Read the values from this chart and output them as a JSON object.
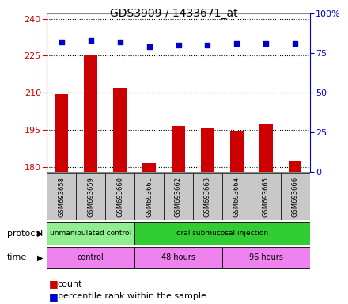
{
  "title": "GDS3909 / 1433671_at",
  "samples": [
    "GSM693658",
    "GSM693659",
    "GSM693660",
    "GSM693661",
    "GSM693662",
    "GSM693663",
    "GSM693664",
    "GSM693665",
    "GSM693666"
  ],
  "bar_values": [
    209.5,
    225.0,
    212.0,
    181.5,
    196.5,
    195.5,
    194.5,
    197.5,
    182.5
  ],
  "percentile_values": [
    82,
    83,
    82,
    79,
    80,
    80,
    81,
    81,
    81
  ],
  "ylim_left": [
    178,
    242
  ],
  "ylim_right": [
    0,
    100
  ],
  "yticks_left": [
    180,
    195,
    210,
    225,
    240
  ],
  "yticks_right": [
    0,
    25,
    50,
    75,
    100
  ],
  "bar_color": "#cc0000",
  "dot_color": "#0000cc",
  "grid_color": "#000000",
  "left_axis_color": "#cc0000",
  "right_axis_color": "#0000cc",
  "plot_bg_color": "#ffffff",
  "protocol_groups": [
    {
      "label": "unmanipulated control",
      "start": 0,
      "end": 3,
      "color": "#90ee90"
    },
    {
      "label": "oral submucosal injection",
      "start": 3,
      "end": 9,
      "color": "#32cd32"
    }
  ],
  "time_groups": [
    {
      "label": "control",
      "start": 0,
      "end": 3,
      "color": "#ee82ee"
    },
    {
      "label": "48 hours",
      "start": 3,
      "end": 6,
      "color": "#ee82ee"
    },
    {
      "label": "96 hours",
      "start": 6,
      "end": 9,
      "color": "#ee82ee"
    }
  ],
  "legend_count_label": "count",
  "legend_pct_label": "percentile rank within the sample",
  "sample_box_color": "#c8c8c8",
  "outer_border_color": "#000000",
  "fig_width": 4.4,
  "fig_height": 3.84,
  "dpi": 100
}
